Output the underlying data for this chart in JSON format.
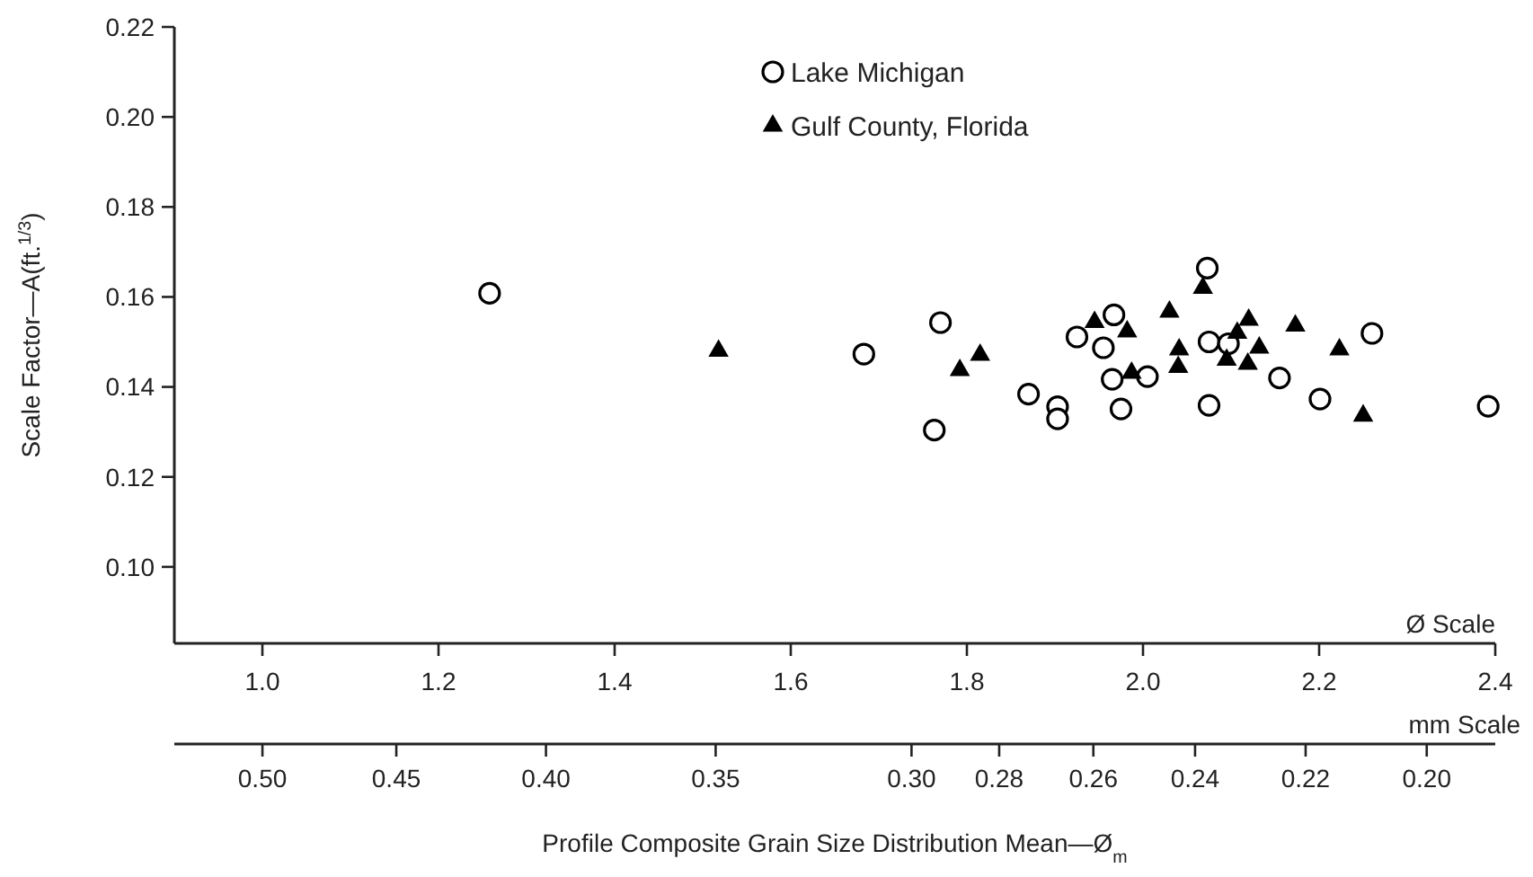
{
  "chart_data": {
    "type": "scatter",
    "xlabel": "Ø Scale",
    "x2label": "mm Scale",
    "ylabel": "Scale Factor—A(ft.$^{1/3}$)",
    "annotations": [
      "Profile Composite Grain Size Distribution Mean—Ø$_{m}$"
    ],
    "xlim": [
      0.9,
      2.4
    ],
    "xticks": [
      {
        "value": 1.0,
        "label": "1.0"
      },
      1.2,
      1.4,
      1.6,
      1.8,
      {
        "value": 2.0,
        "label": "2.0"
      },
      2.2,
      2.4
    ],
    "x2lim": [
      0.5359,
      0.1895
    ],
    "x2ticks": [
      {
        "value": 0.5,
        "label": "0.50"
      },
      0.45,
      {
        "value": 0.4,
        "label": "0.40"
      },
      0.35,
      {
        "value": 0.3,
        "label": "0.30"
      },
      0.28,
      0.26,
      0.24,
      0.22,
      {
        "value": 0.2,
        "label": "0.20"
      }
    ],
    "ylim": [
      0.083,
      0.22
    ],
    "yticks": [
      {
        "value": 0.1,
        "label": "0.10"
      },
      0.12,
      0.14,
      0.16,
      0.18,
      {
        "value": 0.2,
        "label": "0.20"
      },
      0.22
    ],
    "grid": false,
    "legend": "top",
    "log": "x2",
    "series": [
      {
        "name": "Lake Michigan",
        "color": "#000000",
        "marker": "circle",
        "x": [
          1.258,
          1.683,
          1.77,
          1.763,
          1.87,
          1.903,
          1.903,
          1.925,
          1.967,
          1.955,
          1.965,
          1.975,
          2.005,
          2.073,
          2.075,
          2.097,
          2.075,
          2.155,
          2.201,
          2.26,
          2.392
        ],
        "values": [
          0.1608,
          0.1473,
          0.1543,
          0.1304,
          0.1384,
          0.1356,
          0.1329,
          0.1511,
          0.156,
          0.1487,
          0.1417,
          0.1351,
          0.1423,
          0.1664,
          0.15,
          0.1496,
          0.1359,
          0.142,
          0.1373,
          0.1519,
          0.1357
        ]
      },
      {
        "name": "Gulf County, Florida",
        "color": "#000000",
        "marker": "triangle",
        "x": [
          1.518,
          1.792,
          1.815,
          1.945,
          1.982,
          1.987,
          2.03,
          2.041,
          2.04,
          2.068,
          2.095,
          2.107,
          2.12,
          2.132,
          2.119,
          2.173,
          2.223,
          2.25
        ],
        "values": [
          0.148,
          0.1437,
          0.1471,
          0.1544,
          0.1523,
          0.1431,
          0.1567,
          0.1483,
          0.1444,
          0.162,
          0.146,
          0.152,
          0.1549,
          0.1487,
          0.1451,
          0.1536,
          0.1483,
          0.1336
        ]
      }
    ]
  }
}
